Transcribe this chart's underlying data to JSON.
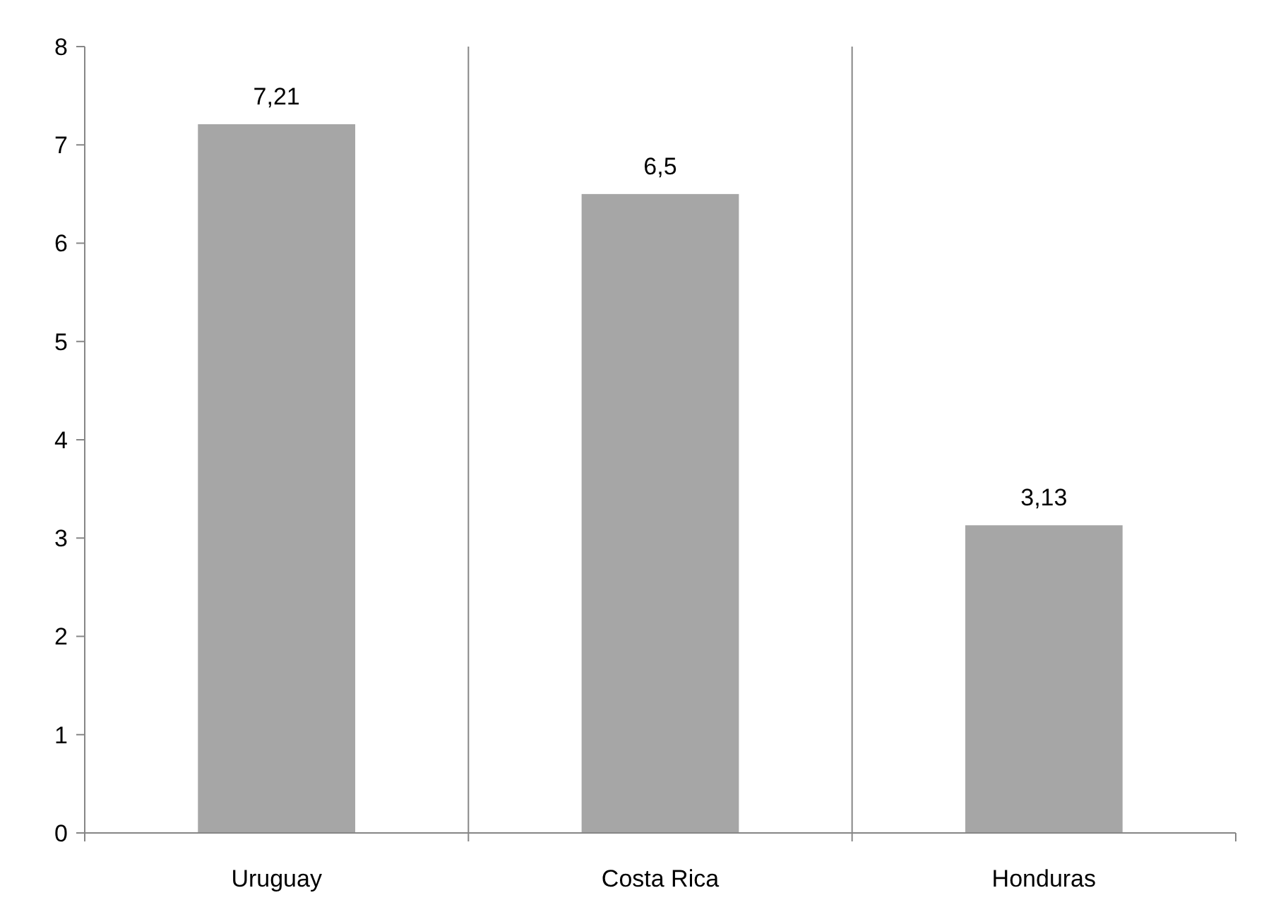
{
  "chart_data": {
    "type": "bar",
    "categories": [
      "Uruguay",
      "Costa Rica",
      "Honduras"
    ],
    "values": [
      7.21,
      6.5,
      3.13
    ],
    "value_labels": [
      "7,21",
      "6,5",
      "3,13"
    ],
    "color": "#a6a6a6",
    "ylim": [
      0,
      8
    ],
    "yticks": [
      0,
      1,
      2,
      3,
      4,
      5,
      6,
      7,
      8
    ],
    "grid": "x"
  }
}
